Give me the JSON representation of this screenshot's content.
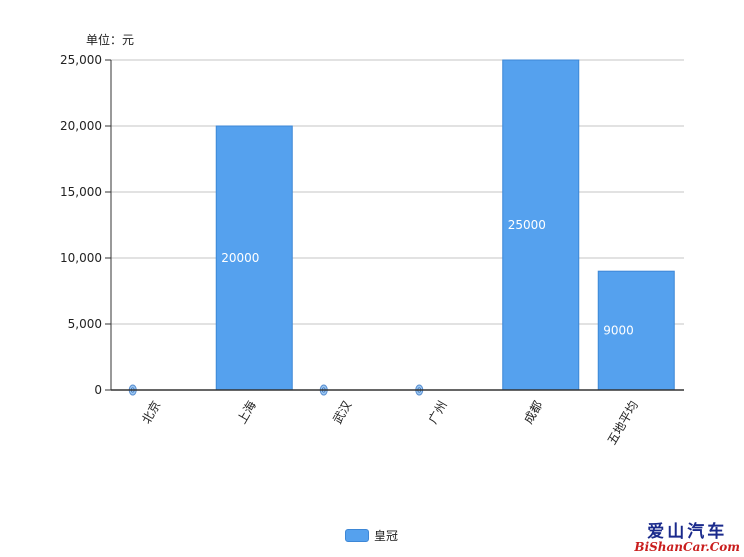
{
  "unit_label": "单位：元",
  "legend": {
    "label": "皇冠",
    "color": "#55a1ee"
  },
  "watermark": {
    "cn": "爱山汽车",
    "en": "BiShanCar.Com"
  },
  "chart_data": {
    "type": "bar",
    "categories": [
      "北京",
      "上海",
      "武汉",
      "广州",
      "成都",
      "五地平均"
    ],
    "series": [
      {
        "name": "皇冠",
        "values": [
          0,
          20000,
          0,
          0,
          25000,
          9000
        ]
      }
    ],
    "data_labels": [
      "0",
      "20000",
      "0",
      "0",
      "25000",
      "9000"
    ],
    "y_ticks": [
      "0",
      "5,000",
      "10,000",
      "15,000",
      "20,000",
      "25,000"
    ],
    "ylim": [
      0,
      25000
    ],
    "grid": true,
    "legend_position": "bottom",
    "bar_color": "#55a1ee"
  }
}
